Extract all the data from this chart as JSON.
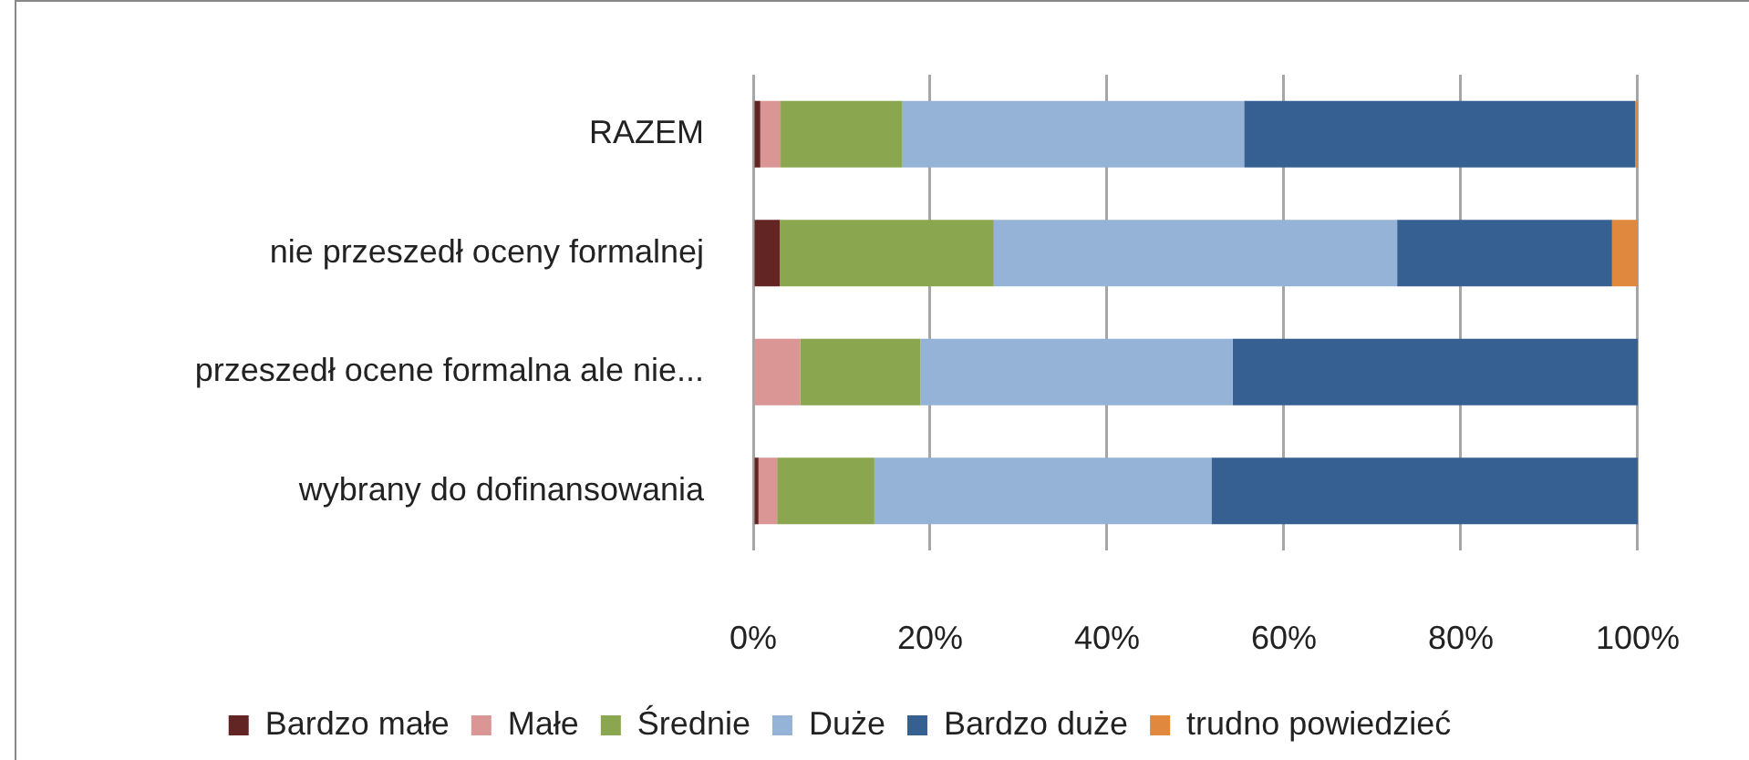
{
  "chart_data": {
    "type": "bar",
    "orientation": "horizontal",
    "stacked": true,
    "categories": [
      "RAZEM",
      "nie przeszedł oceny formalnej",
      "przeszedł ocene formalna ale nie...",
      "wybrany do dofinansowania"
    ],
    "series": [
      {
        "name": "Bardzo małe",
        "color": "#632523",
        "values": [
          0.8,
          3.0,
          0,
          0.6
        ]
      },
      {
        "name": "Małe",
        "color": "#d99694",
        "values": [
          2.3,
          0,
          5.3,
          2.1
        ]
      },
      {
        "name": "Średnie",
        "color": "#8aa64e",
        "values": [
          13.7,
          24.2,
          13.6,
          11.0
        ]
      },
      {
        "name": "Duże",
        "color": "#95b3d7",
        "values": [
          38.7,
          45.6,
          35.3,
          38.1
        ]
      },
      {
        "name": "Bardzo duże",
        "color": "#366092",
        "values": [
          44.2,
          24.3,
          45.8,
          48.2
        ]
      },
      {
        "name": "trudno powiedzieć",
        "color": "#e0883e",
        "values": [
          0.3,
          2.9,
          0,
          0
        ]
      }
    ],
    "xlim": [
      0,
      100
    ],
    "xticks": [
      {
        "value": 0,
        "label": "0%"
      },
      {
        "value": 20,
        "label": "20%"
      },
      {
        "value": 40,
        "label": "40%"
      },
      {
        "value": 60,
        "label": "60%"
      },
      {
        "value": 80,
        "label": "80%"
      },
      {
        "value": 100,
        "label": "100%"
      }
    ],
    "grid": "x",
    "legend": "bottom"
  }
}
